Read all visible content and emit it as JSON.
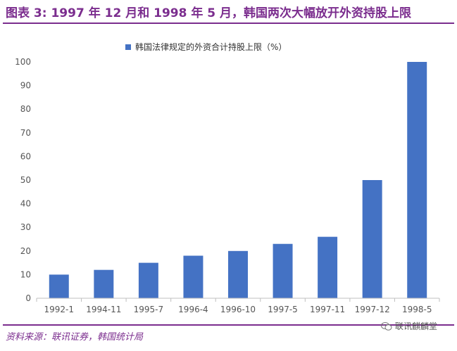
{
  "header": {
    "title": "图表 3: 1997 年 12 月和 1998 年 5 月，韩国两次大幅放开外资持股上限"
  },
  "footer": {
    "source": "资料来源：联讯证券，韩国统计局",
    "watermark": "联讯麒麟堂",
    "watermark_icon": "wechat-icon"
  },
  "colors": {
    "accent": "#7b2d8e",
    "bar": "#4472c4"
  },
  "chart_data": {
    "type": "bar",
    "categories": [
      "1992-1",
      "1994-11",
      "1995-7",
      "1996-4",
      "1996-10",
      "1997-5",
      "1997-11",
      "1997-12",
      "1998-5"
    ],
    "series": [
      {
        "name": "韩国法律规定的外资合计持股上限（%）",
        "values": [
          10,
          12,
          15,
          18,
          20,
          23,
          26,
          50,
          100
        ]
      }
    ],
    "yticks": [
      "0",
      "10",
      "20",
      "30",
      "40",
      "50",
      "60",
      "70",
      "80",
      "90",
      "100"
    ],
    "ylim": [
      0,
      100
    ],
    "grid": false,
    "legend": "top"
  }
}
